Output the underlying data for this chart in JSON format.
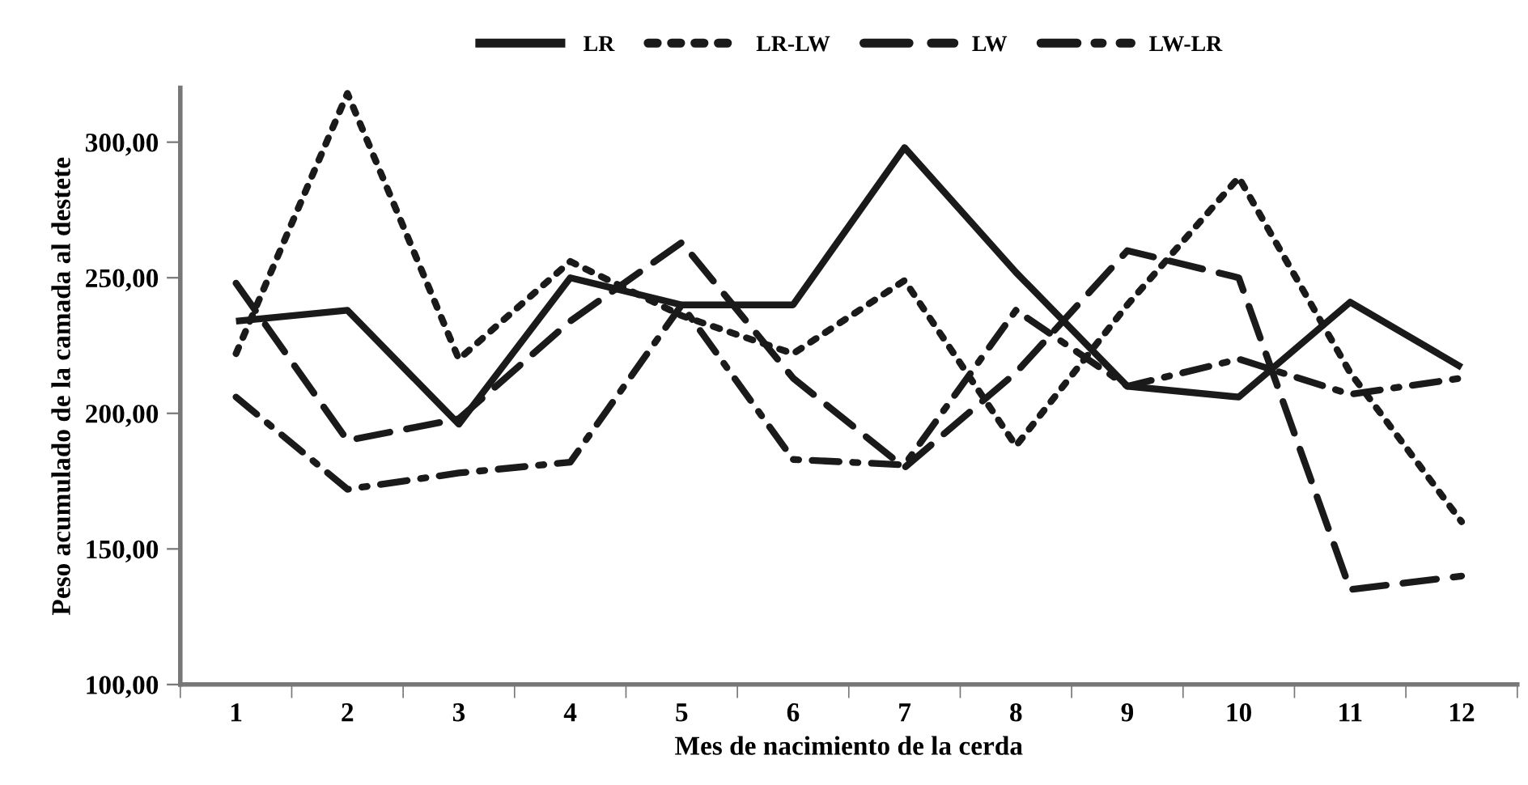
{
  "chart_data": {
    "type": "line",
    "xlabel": "Mes de nacimiento de la cerda",
    "ylabel": "Peso acumulado de la camada al destete",
    "categories": [
      "1",
      "2",
      "3",
      "4",
      "5",
      "6",
      "7",
      "8",
      "9",
      "10",
      "11",
      "12"
    ],
    "ylim": [
      100,
      320
    ],
    "yticks": [
      {
        "value": 100,
        "label": "100,00"
      },
      {
        "value": 150,
        "label": "150,00"
      },
      {
        "value": 200,
        "label": "200,00"
      },
      {
        "value": 250,
        "label": "250,00"
      },
      {
        "value": 300,
        "label": "300,00"
      }
    ],
    "grid": false,
    "legend": "top",
    "series": [
      {
        "name": "LR",
        "color": "#1a1a1a",
        "line_style": "solid",
        "values": [
          234,
          238,
          196,
          250,
          240,
          240,
          298,
          252,
          210,
          206,
          241,
          217
        ]
      },
      {
        "name": "LR-LW",
        "color": "#1a1a1a",
        "line_style": "dotted",
        "values": [
          222,
          318,
          220,
          256,
          236,
          222,
          249,
          188,
          240,
          287,
          215,
          160
        ]
      },
      {
        "name": "LW",
        "color": "#1a1a1a",
        "line_style": "dashed",
        "values": [
          248,
          190,
          198,
          234,
          263,
          213,
          180,
          215,
          260,
          250,
          135,
          140
        ]
      },
      {
        "name": "LW-LR",
        "color": "#1a1a1a",
        "line_style": "dashdot",
        "values": [
          206,
          172,
          178,
          182,
          240,
          183,
          181,
          238,
          210,
          220,
          207,
          213
        ]
      }
    ]
  }
}
